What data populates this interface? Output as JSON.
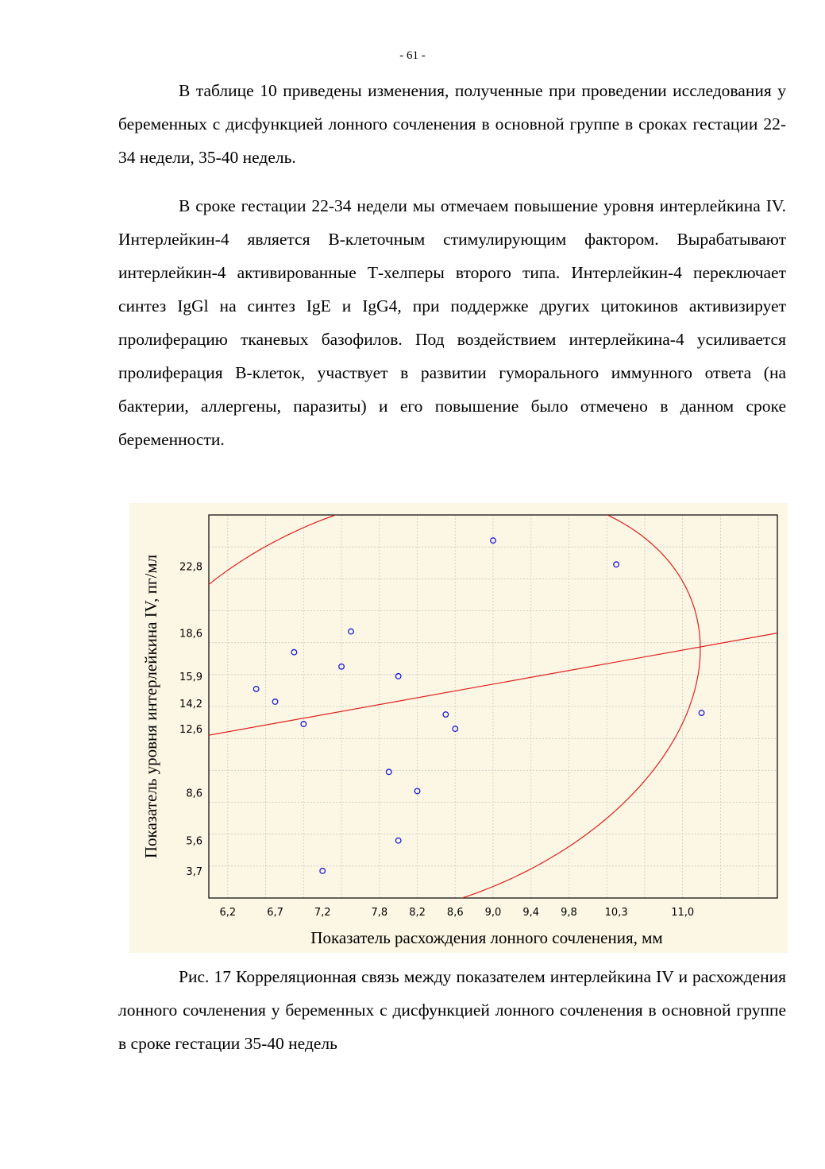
{
  "page_number": "- 61 -",
  "paragraphs": {
    "p1": "В таблице 10 приведены изменения, полученные при проведении исследования у беременных с дисфункцией лонного сочленения в основной группе в сроках гестации 22-34 недели, 35-40 недель.",
    "p2": "В сроке гестации 22-34 недели мы отмечаем повышение уровня интерлейкина IV. Интерлейкин-4 является В-клеточным стимулирующим фактором. Вырабатывают интерлейкин-4 активированные Т-хелперы второго типа. Интерлейкин-4 переключает синтез IgGl на синтез IgE и IgG4, при поддержке других цитокинов активизирует пролиферацию тканевых базофилов. Под воздействием интерлейкина-4 усиливается пролиферация В-клеток, участвует в развитии гуморального иммунного ответа (на бактерии, аллергены, паразиты) и его повышение было отмечено в данном сроке беременности."
  },
  "caption": "Рис. 17 Корреляционная связь между показателем интерлейкина IV и расхождения лонного сочленения у беременных с дисфункцией лонного сочленения в основной группе в сроке гестации 35-40 недель",
  "colors": {
    "background": "#fcf7e4",
    "points": "#1a1ae0",
    "fit_line": "#e02020",
    "grid": "#c8c8c8"
  },
  "chart_data": {
    "type": "scatter",
    "xlabel": "Показатель расхождения лонного сочленения, мм",
    "ylabel": "Показатель уровня интерлейкина IV, пг/мл",
    "xlim": [
      6.0,
      12.0
    ],
    "ylim": [
      2.0,
      26.0
    ],
    "x_tick_labels": [
      "6,2",
      "6,7",
      "7,2",
      "7,8",
      "8,2",
      "8,6",
      "9,0",
      "9,4",
      "9,8",
      "10,3",
      "11,0"
    ],
    "y_tick_labels": [
      "3,7",
      "5,6",
      "8,6",
      "12,6",
      "14,2",
      "15,9",
      "18,6",
      "22,8"
    ],
    "grid": true,
    "points": [
      {
        "x": 6.5,
        "y": 15.1
      },
      {
        "x": 6.7,
        "y": 14.3
      },
      {
        "x": 6.9,
        "y": 17.4
      },
      {
        "x": 7.0,
        "y": 12.9
      },
      {
        "x": 7.2,
        "y": 3.7
      },
      {
        "x": 7.4,
        "y": 16.5
      },
      {
        "x": 7.5,
        "y": 18.7
      },
      {
        "x": 7.9,
        "y": 9.9
      },
      {
        "x": 8.0,
        "y": 15.9
      },
      {
        "x": 8.0,
        "y": 5.6
      },
      {
        "x": 8.2,
        "y": 8.7
      },
      {
        "x": 8.5,
        "y": 13.5
      },
      {
        "x": 8.6,
        "y": 12.6
      },
      {
        "x": 9.0,
        "y": 24.4
      },
      {
        "x": 10.3,
        "y": 22.9
      },
      {
        "x": 11.2,
        "y": 13.6
      }
    ],
    "regression_line": {
      "x": [
        6.0,
        12.0
      ],
      "y": [
        12.2,
        18.6
      ]
    }
  }
}
